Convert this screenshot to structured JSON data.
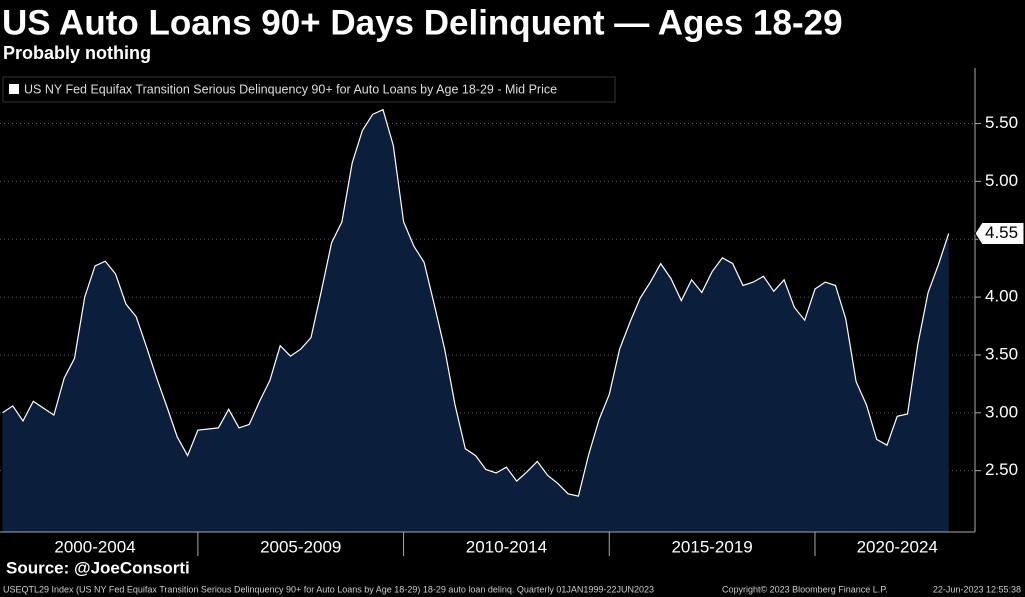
{
  "chart_data": {
    "type": "area",
    "title": "US Auto Loans 90+ Days Delinquent — Ages 18-29",
    "subtitle": "Probably nothing",
    "series_name": "US NY Fed Equifax Transition Serious Delinquency 90+ for Auto Loans by Age 18-29 - Mid Price",
    "line_color": "#ffffff",
    "fill_color": "#0b1f3c",
    "x": [
      2000.25,
      2000.5,
      2000.75,
      2001,
      2001.25,
      2001.5,
      2001.75,
      2002,
      2002.25,
      2002.5,
      2002.75,
      2003,
      2003.25,
      2003.5,
      2003.75,
      2004,
      2004.25,
      2004.5,
      2004.75,
      2005,
      2005.25,
      2005.5,
      2005.75,
      2006,
      2006.25,
      2006.5,
      2006.75,
      2007,
      2007.25,
      2007.5,
      2007.75,
      2008,
      2008.25,
      2008.5,
      2008.75,
      2009,
      2009.25,
      2009.5,
      2009.75,
      2010,
      2010.25,
      2010.5,
      2010.75,
      2011,
      2011.25,
      2011.5,
      2011.75,
      2012,
      2012.25,
      2012.5,
      2012.75,
      2013,
      2013.25,
      2013.5,
      2013.75,
      2014,
      2014.25,
      2014.5,
      2014.75,
      2015,
      2015.25,
      2015.5,
      2015.75,
      2016,
      2016.25,
      2016.5,
      2016.75,
      2017,
      2017.25,
      2017.5,
      2017.75,
      2018,
      2018.25,
      2018.5,
      2018.75,
      2019,
      2019.25,
      2019.5,
      2019.75,
      2020,
      2020.25,
      2020.5,
      2020.75,
      2021,
      2021.25,
      2021.5,
      2021.75,
      2022,
      2022.25,
      2022.5,
      2022.75,
      2023,
      2023.25
    ],
    "values": [
      3.0,
      3.06,
      2.93,
      3.1,
      3.04,
      2.98,
      3.3,
      3.47,
      4.0,
      4.27,
      4.31,
      4.2,
      3.94,
      3.83,
      3.57,
      3.3,
      3.05,
      2.79,
      2.63,
      2.85,
      2.86,
      2.87,
      3.03,
      2.87,
      2.9,
      3.1,
      3.28,
      3.58,
      3.49,
      3.55,
      3.65,
      4.05,
      4.47,
      4.65,
      5.16,
      5.44,
      5.58,
      5.62,
      5.31,
      4.65,
      4.44,
      4.3,
      3.93,
      3.55,
      3.07,
      2.69,
      2.63,
      2.51,
      2.48,
      2.53,
      2.41,
      2.49,
      2.58,
      2.46,
      2.39,
      2.3,
      2.28,
      2.64,
      2.94,
      3.16,
      3.55,
      3.78,
      3.99,
      4.13,
      4.29,
      4.16,
      3.97,
      4.15,
      4.04,
      4.22,
      4.34,
      4.29,
      4.1,
      4.13,
      4.18,
      4.05,
      4.15,
      3.91,
      3.8,
      4.07,
      4.13,
      4.1,
      3.81,
      3.27,
      3.07,
      2.77,
      2.72,
      2.97,
      2.99,
      3.59,
      4.04,
      4.28,
      4.55
    ],
    "xlim": [
      2000.19,
      2023.89
    ],
    "xticks": [
      {
        "value": 2002.5,
        "label": "2000-2004"
      },
      {
        "value": 2007.5,
        "label": "2005-2009"
      },
      {
        "value": 2012.5,
        "label": "2010-2014"
      },
      {
        "value": 2017.5,
        "label": "2015-2019"
      },
      {
        "value": 2022,
        "label": "2020-2024"
      }
    ],
    "xdividers": [
      2005,
      2010,
      2015,
      2020
    ],
    "ylim": [
      1.97,
      5.98
    ],
    "yticks": [
      {
        "value": 2.5,
        "label": "2.50"
      },
      {
        "value": 3,
        "label": "3.00"
      },
      {
        "value": 3.5,
        "label": "3.50"
      },
      {
        "value": 4,
        "label": "4.00"
      },
      {
        "value": 4.5,
        "label": "4.50"
      },
      {
        "value": 5,
        "label": "5.00"
      },
      {
        "value": 5.5,
        "label": "5.50"
      }
    ],
    "grid": true,
    "axis_side": "right"
  },
  "footer": {
    "source": "Source: @JoeConsorti",
    "description": "USEQTL29 Index (US NY Fed Equifax Transition Serious Delinquency 90+ for Auto Loans by Age 18-29) 18-29 auto loan delinq.  Quarterly 01JAN1999-22JUN2023",
    "copyright": "Copyright© 2023 Bloomberg Finance L.P.",
    "timestamp": "22-Jun-2023 12:55:38"
  }
}
